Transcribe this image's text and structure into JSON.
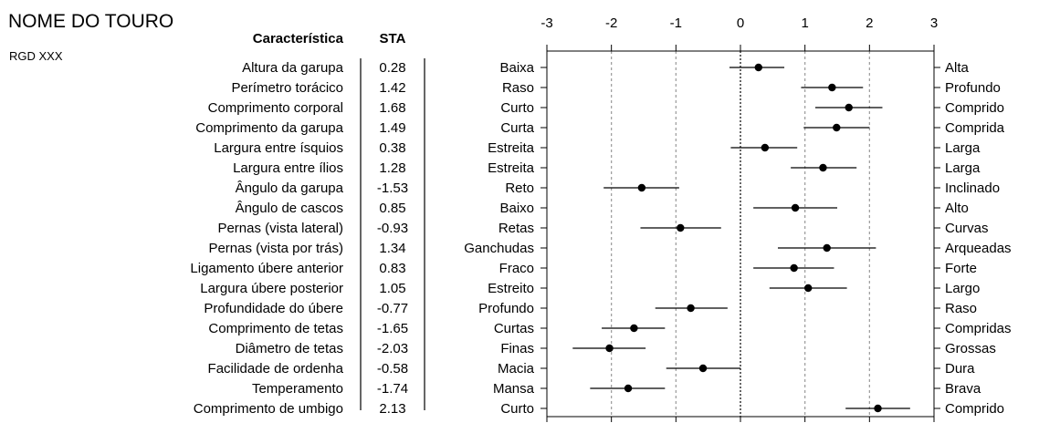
{
  "header": {
    "title": "NOME DO TOURO",
    "subtitle": "RGD XXX"
  },
  "columns": {
    "trait": "Característica",
    "sta": "STA"
  },
  "chart_data": {
    "type": "scatter",
    "xlim": [
      -3,
      3
    ],
    "x_ticks": [
      "-3",
      "-2",
      "-1",
      "0",
      "1",
      "2",
      "3"
    ],
    "grid": "vertical dashed at -2, -1, 1, 2; dotted at 0",
    "rows": [
      {
        "trait": "Altura da garupa",
        "sta": "0.28",
        "value": 0.28,
        "low": -0.17,
        "high": 0.68,
        "left": "Baixa",
        "right": "Alta"
      },
      {
        "trait": "Perímetro torácico",
        "sta": "1.42",
        "value": 1.42,
        "low": 0.94,
        "high": 1.9,
        "left": "Raso",
        "right": "Profundo"
      },
      {
        "trait": "Comprimento corporal",
        "sta": "1.68",
        "value": 1.68,
        "low": 1.16,
        "high": 2.2,
        "left": "Curto",
        "right": "Comprido"
      },
      {
        "trait": "Comprimento da garupa",
        "sta": "1.49",
        "value": 1.49,
        "low": 0.98,
        "high": 2.0,
        "left": "Curta",
        "right": "Comprida"
      },
      {
        "trait": "Largura entre ísquios",
        "sta": "0.38",
        "value": 0.38,
        "low": -0.15,
        "high": 0.88,
        "left": "Estreita",
        "right": "Larga"
      },
      {
        "trait": "Largura entre ílios",
        "sta": "1.28",
        "value": 1.28,
        "low": 0.78,
        "high": 1.8,
        "left": "Estreita",
        "right": "Larga"
      },
      {
        "trait": "Ângulo da garupa",
        "sta": "-1.53",
        "value": -1.53,
        "low": -2.12,
        "high": -0.95,
        "left": "Reto",
        "right": "Inclinado"
      },
      {
        "trait": "Ângulo de cascos",
        "sta": "0.85",
        "value": 0.85,
        "low": 0.2,
        "high": 1.5,
        "left": "Baixo",
        "right": "Alto"
      },
      {
        "trait": "Pernas (vista lateral)",
        "sta": "-0.93",
        "value": -0.93,
        "low": -1.55,
        "high": -0.3,
        "left": "Retas",
        "right": "Curvas"
      },
      {
        "trait": "Pernas (vista por trás)",
        "sta": "1.34",
        "value": 1.34,
        "low": 0.58,
        "high": 2.1,
        "left": "Ganchudas",
        "right": "Arqueadas"
      },
      {
        "trait": "Ligamento úbere anterior",
        "sta": "0.83",
        "value": 0.83,
        "low": 0.2,
        "high": 1.45,
        "left": "Fraco",
        "right": "Forte"
      },
      {
        "trait": "Largura úbere posterior",
        "sta": "1.05",
        "value": 1.05,
        "low": 0.45,
        "high": 1.65,
        "left": "Estreito",
        "right": "Largo"
      },
      {
        "trait": "Profundidade do úbere",
        "sta": "-0.77",
        "value": -0.77,
        "low": -1.32,
        "high": -0.2,
        "left": "Profundo",
        "right": "Raso"
      },
      {
        "trait": "Comprimento de tetas",
        "sta": "-1.65",
        "value": -1.65,
        "low": -2.15,
        "high": -1.17,
        "left": "Curtas",
        "right": "Compridas"
      },
      {
        "trait": "Diâmetro de tetas",
        "sta": "-2.03",
        "value": -2.03,
        "low": -2.6,
        "high": -1.47,
        "left": "Finas",
        "right": "Grossas"
      },
      {
        "trait": "Facilidade de ordenha",
        "sta": "-0.58",
        "value": -0.58,
        "low": -1.15,
        "high": 0.0,
        "left": "Macia",
        "right": "Dura"
      },
      {
        "trait": "Temperamento",
        "sta": "-1.74",
        "value": -1.74,
        "low": -2.33,
        "high": -1.17,
        "left": "Mansa",
        "right": "Brava"
      },
      {
        "trait": "Comprimento de umbigo",
        "sta": "2.13",
        "value": 2.13,
        "low": 1.63,
        "high": 2.63,
        "left": "Curto",
        "right": "Comprido"
      }
    ]
  }
}
